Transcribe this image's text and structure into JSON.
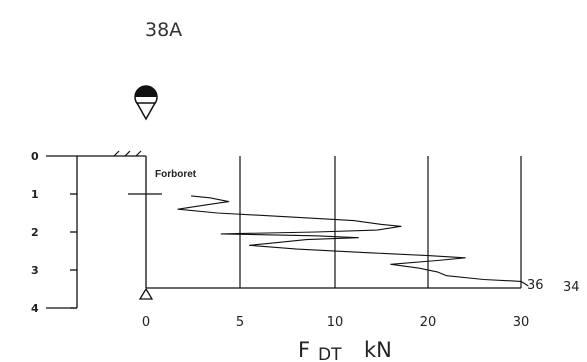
{
  "header": {
    "title": "38A"
  },
  "annotations": {
    "predrill_label": "Forboret",
    "end_value_left": "36",
    "end_value_right": "34"
  },
  "axis": {
    "label_main": "F",
    "label_sub": "DT",
    "label_unit": "kN"
  },
  "chart_data": {
    "type": "line",
    "title": "38A",
    "xlabel": "F DT kN",
    "ylabel": "",
    "x_ticks": [
      "0",
      "5",
      "10",
      "20",
      "30"
    ],
    "y_ticks": [
      "0",
      "1",
      "2",
      "3",
      "4"
    ],
    "ylim": [
      0,
      4
    ],
    "depth_reached": 3.5,
    "series": [
      {
        "name": "",
        "points": [
          {
            "depth": 1.05,
            "force": 2.4
          },
          {
            "depth": 1.1,
            "force": 3.4
          },
          {
            "depth": 1.2,
            "force": 4.4
          },
          {
            "depth": 1.3,
            "force": 3.0
          },
          {
            "depth": 1.4,
            "force": 1.7
          },
          {
            "depth": 1.5,
            "force": 3.8
          },
          {
            "depth": 1.6,
            "force": 7.5
          },
          {
            "depth": 1.7,
            "force": 12.0
          },
          {
            "depth": 1.8,
            "force": 15.0
          },
          {
            "depth": 1.85,
            "force": 17.1
          },
          {
            "depth": 1.95,
            "force": 14.5
          },
          {
            "depth": 2.0,
            "force": 9.0
          },
          {
            "depth": 2.05,
            "force": 4.0
          },
          {
            "depth": 2.1,
            "force": 9.0
          },
          {
            "depth": 2.15,
            "force": 12.5
          },
          {
            "depth": 2.2,
            "force": 8.5
          },
          {
            "depth": 2.3,
            "force": 6.5
          },
          {
            "depth": 2.35,
            "force": 5.5
          },
          {
            "depth": 2.45,
            "force": 8.0
          },
          {
            "depth": 2.55,
            "force": 14.0
          },
          {
            "depth": 2.62,
            "force": 20.0
          },
          {
            "depth": 2.68,
            "force": 24.0
          },
          {
            "depth": 2.75,
            "force": 21.0
          },
          {
            "depth": 2.85,
            "force": 16.0
          },
          {
            "depth": 2.95,
            "force": 19.0
          },
          {
            "depth": 3.05,
            "force": 21.0
          },
          {
            "depth": 3.15,
            "force": 22.0
          },
          {
            "depth": 3.25,
            "force": 26.0
          },
          {
            "depth": 3.3,
            "force": 30.0
          },
          {
            "depth": 3.42,
            "force": 30.8
          }
        ]
      }
    ]
  }
}
